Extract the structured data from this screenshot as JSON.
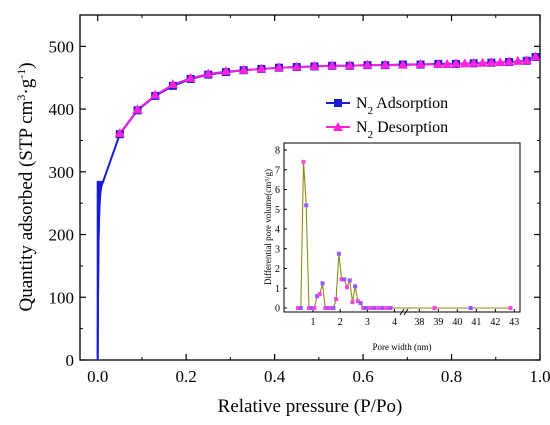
{
  "chart_data": [
    {
      "type": "line",
      "xlabel": "Relative pressure (P/Po)",
      "ylabel_main": "Quantity adsorbed (STP cm",
      "ylabel_sup1": "3",
      "ylabel_mid": "·g",
      "ylabel_sup2": "-1",
      "ylabel_end": ")",
      "xlim": [
        -0.04,
        1.0
      ],
      "ylim": [
        0,
        550
      ],
      "xticks": [
        0.0,
        0.2,
        0.4,
        0.6,
        0.8,
        1.0
      ],
      "xtick_labels": [
        "0.0",
        "0.2",
        "0.4",
        "0.6",
        "0.8",
        "1.0"
      ],
      "yticks": [
        0,
        100,
        200,
        300,
        400,
        500
      ],
      "ytick_labels": [
        "0",
        "100",
        "200",
        "300",
        "400",
        "500"
      ],
      "legend": {
        "placement": "center-right",
        "entries": [
          {
            "series": 0,
            "pre": "N",
            "sub": "2",
            "post": " Adsorption"
          },
          {
            "series": 1,
            "pre": "N",
            "sub": "2",
            "post": " Desorption"
          }
        ]
      },
      "series": [
        {
          "name": "N2 Adsorption",
          "color": "#1b1bd6",
          "marker": "square",
          "x": [
            0.0,
            0.0003,
            0.0006,
            0.001,
            0.0015,
            0.002,
            0.003,
            0.004,
            0.005,
            0.006,
            0.008,
            0.01,
            0.012,
            0.05,
            0.09,
            0.13,
            0.17,
            0.21,
            0.25,
            0.29,
            0.33,
            0.37,
            0.41,
            0.45,
            0.49,
            0.53,
            0.57,
            0.61,
            0.65,
            0.69,
            0.73,
            0.77,
            0.81,
            0.85,
            0.89,
            0.93,
            0.97,
            0.99
          ],
          "y": [
            5,
            45,
            90,
            130,
            165,
            195,
            225,
            245,
            258,
            267,
            276,
            281,
            284,
            360,
            398,
            421,
            437,
            448,
            455,
            459,
            462,
            464,
            466,
            467,
            468,
            469,
            469,
            470,
            470,
            471,
            471,
            472,
            472,
            473,
            474,
            475,
            477,
            483
          ],
          "marker_from_index": 13
        },
        {
          "name": "N2 Desorption",
          "color": "#ff22dd",
          "marker": "triangle",
          "x": [
            0.99,
            0.97,
            0.95,
            0.93,
            0.91,
            0.89,
            0.87,
            0.85,
            0.83,
            0.81,
            0.79,
            0.77,
            0.73,
            0.69,
            0.65,
            0.61,
            0.57,
            0.53,
            0.49,
            0.45,
            0.41,
            0.37,
            0.33,
            0.29,
            0.25,
            0.21,
            0.17,
            0.13,
            0.09,
            0.05
          ],
          "y": [
            483,
            477,
            476,
            475,
            474,
            474,
            473,
            473,
            472,
            472,
            471,
            471,
            471,
            470,
            470,
            470,
            469,
            469,
            468,
            467,
            466,
            464,
            462,
            460,
            456,
            449,
            439,
            422,
            399,
            361
          ],
          "marker_from_index": 0
        }
      ]
    },
    {
      "type": "line",
      "xlabel": "Pore width (nm)",
      "ylabel": "Differential pore volume(cm³/g)",
      "ylim": [
        0,
        8
      ],
      "yticks": [
        0,
        1,
        2,
        3,
        4,
        5,
        6,
        7,
        8
      ],
      "ytick_labels": [
        "0",
        "1",
        "2",
        "3",
        "4",
        "5",
        "6",
        "7",
        "8"
      ],
      "xtick_labels": [
        "1",
        "2",
        "3",
        "4",
        "38",
        "39",
        "40",
        "41",
        "42",
        "43"
      ],
      "axis_break": "between 4 and 38",
      "series": [
        {
          "name": "Differential pore volume",
          "line_color": "#8a8a1a",
          "marker_colors": [
            "#ff44dd",
            "#9955ff"
          ],
          "x": [
            0.45,
            0.55,
            0.65,
            0.75,
            0.85,
            0.95,
            1.05,
            1.15,
            1.25,
            1.35,
            1.45,
            1.55,
            1.65,
            1.75,
            1.85,
            1.95,
            2.05,
            2.15,
            2.25,
            2.35,
            2.45,
            2.55,
            2.65,
            2.75,
            2.85,
            2.95,
            3.1,
            3.25,
            3.4,
            3.55,
            3.7,
            3.85,
            38.8,
            40.7,
            42.8
          ],
          "y": [
            0,
            0,
            7.4,
            5.2,
            0,
            0,
            0,
            0.6,
            0.7,
            1.25,
            0,
            0,
            0,
            0,
            0.45,
            2.75,
            1.45,
            1.45,
            1.05,
            1.4,
            0.3,
            1.1,
            0.35,
            0.25,
            0,
            0,
            0,
            0,
            0,
            0,
            0,
            0,
            0,
            0,
            0
          ]
        }
      ]
    }
  ]
}
